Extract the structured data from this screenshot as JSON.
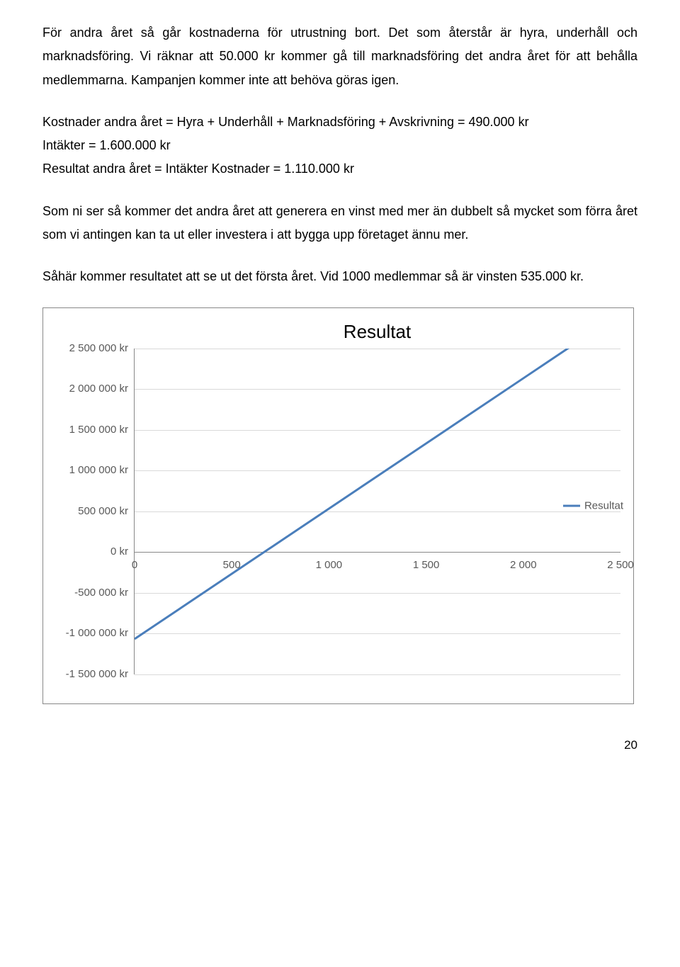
{
  "paragraphs": {
    "p1": "För andra året så går kostnaderna för utrustning bort. Det som återstår är hyra, underhåll och marknadsföring. Vi räknar att 50.000 kr kommer gå till marknadsföring det andra året för att behålla medlemmarna. Kampanjen kommer inte att behöva göras igen.",
    "p2_l1": "Kostnader andra året = Hyra + Underhåll + Marknadsföring + Avskrivning = 490.000  kr",
    "p2_l2": "Intäkter = 1.600.000 kr",
    "p2_l3": "Resultat andra året = Intäkter Kostnader = 1.110.000 kr",
    "p3": "Som ni ser så kommer det andra året att generera en vinst med mer än dubbelt så mycket som förra året som vi antingen kan ta ut eller investera i att bygga upp företaget ännu mer.",
    "p4": "Såhär kommer resultatet att se ut det första året. Vid 1000 medlemmar så är vinsten 535.000 kr."
  },
  "chart": {
    "type": "line",
    "title": "Resultat",
    "title_fontsize": 26,
    "title_color": "#000000",
    "background_color": "#ffffff",
    "border_color": "#888888",
    "grid_color": "#d9d9d9",
    "axis_color": "#888888",
    "tick_label_color": "#595959",
    "tick_label_fontsize": 15,
    "ylim": [
      -1500000,
      2500000
    ],
    "ytick_step": 500000,
    "ytick_labels": [
      "2 500 000 kr",
      "2 000 000 kr",
      "1 500 000 kr",
      "1 000 000 kr",
      "500 000 kr",
      "0 kr",
      "-500 000 kr",
      "-1 000 000 kr",
      "-1 500 000 kr"
    ],
    "xlim": [
      0,
      2500
    ],
    "xtick_step": 500,
    "xtick_labels": [
      "0",
      "500",
      "1 000",
      "1 500",
      "2 000",
      "2 500"
    ],
    "series": {
      "name": "Resultat",
      "color": "#4a7ebb",
      "line_width": 3,
      "x": [
        0,
        2500
      ],
      "y": [
        -1065000,
        2935000
      ]
    },
    "legend": {
      "position": "right",
      "label": "Resultat"
    }
  },
  "page_number": "20"
}
